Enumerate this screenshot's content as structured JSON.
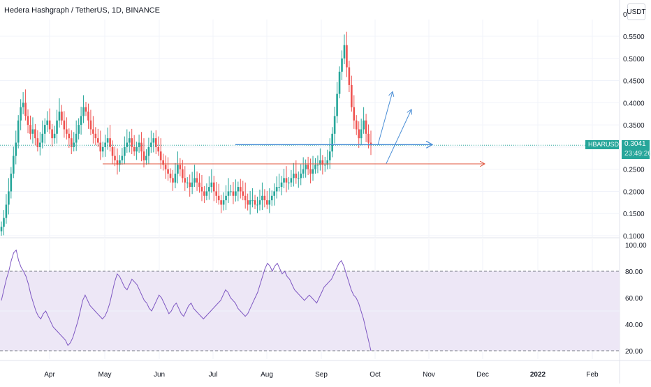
{
  "header": {
    "title": "Hedera Hashgraph / TetherUS, 1D, BINANCE",
    "currency": "USDT"
  },
  "price_badge": {
    "symbol": "HBARUSDT",
    "price": "0.3041",
    "countdown": "23:49:26",
    "color": "#26a69a"
  },
  "colors": {
    "up": "#26a69a",
    "down": "#ef5350",
    "rsi_line": "#7e57c2",
    "rsi_band": "#ede7f6",
    "support_line": "#4c8fd6",
    "resistance_line": "#e0543c"
  },
  "chart_data": [
    {
      "type": "candlestick",
      "title": "Hedera Hashgraph / TetherUS, 1D, BINANCE",
      "y_ticks": [
        "0.1000",
        "0.1500",
        "0.2000",
        "0.2500",
        "0.3000",
        "0.3500",
        "0.4000",
        "0.4500",
        "0.5000",
        "0.5500",
        "0"
      ],
      "x_ticks": [
        "Apr",
        "May",
        "Jun",
        "Jul",
        "Aug",
        "Sep",
        "Oct",
        "Nov",
        "Dec",
        "2022",
        "Feb"
      ],
      "last_price": 0.3041,
      "ylim": [
        0.1,
        0.6
      ],
      "series_close": [
        0.12,
        0.14,
        0.17,
        0.2,
        0.24,
        0.28,
        0.31,
        0.36,
        0.39,
        0.4,
        0.37,
        0.35,
        0.33,
        0.34,
        0.32,
        0.3,
        0.31,
        0.33,
        0.35,
        0.36,
        0.34,
        0.32,
        0.33,
        0.36,
        0.38,
        0.36,
        0.34,
        0.33,
        0.32,
        0.3,
        0.31,
        0.33,
        0.35,
        0.37,
        0.39,
        0.38,
        0.36,
        0.34,
        0.33,
        0.32,
        0.31,
        0.29,
        0.3,
        0.31,
        0.32,
        0.3,
        0.28,
        0.27,
        0.26,
        0.27,
        0.28,
        0.3,
        0.31,
        0.32,
        0.3,
        0.29,
        0.3,
        0.31,
        0.29,
        0.27,
        0.28,
        0.3,
        0.31,
        0.32,
        0.3,
        0.29,
        0.27,
        0.26,
        0.25,
        0.24,
        0.23,
        0.22,
        0.24,
        0.26,
        0.25,
        0.23,
        0.22,
        0.22,
        0.21,
        0.22,
        0.23,
        0.22,
        0.21,
        0.2,
        0.19,
        0.2,
        0.21,
        0.22,
        0.2,
        0.19,
        0.18,
        0.17,
        0.18,
        0.19,
        0.2,
        0.2,
        0.19,
        0.2,
        0.21,
        0.2,
        0.19,
        0.18,
        0.17,
        0.18,
        0.18,
        0.17,
        0.17,
        0.18,
        0.19,
        0.18,
        0.17,
        0.18,
        0.19,
        0.2,
        0.21,
        0.21,
        0.22,
        0.23,
        0.22,
        0.22,
        0.23,
        0.24,
        0.23,
        0.23,
        0.24,
        0.25,
        0.26,
        0.25,
        0.24,
        0.25,
        0.26,
        0.26,
        0.27,
        0.26,
        0.26,
        0.27,
        0.29,
        0.33,
        0.37,
        0.42,
        0.47,
        0.5,
        0.53,
        0.48,
        0.44,
        0.39,
        0.36,
        0.34,
        0.32,
        0.34,
        0.36,
        0.33,
        0.31,
        0.3041
      ],
      "series_ohlc_note": "OHLC estimated from candle shapes; close series listed above",
      "annotations": [
        "horizontal blue support line near 0.305",
        "horizontal red line near 0.262",
        "blue projection arrows upward"
      ]
    },
    {
      "type": "line",
      "title": "RSI",
      "y_ticks": [
        "20.00",
        "40.00",
        "60.00",
        "80.00",
        "100.00"
      ],
      "ylim": [
        15,
        100
      ],
      "band": [
        20,
        80
      ],
      "values": [
        58,
        66,
        74,
        80,
        88,
        94,
        96,
        88,
        83,
        80,
        76,
        70,
        62,
        56,
        50,
        46,
        44,
        48,
        50,
        46,
        42,
        38,
        36,
        34,
        32,
        30,
        28,
        24,
        26,
        30,
        36,
        42,
        50,
        58,
        62,
        58,
        54,
        52,
        50,
        48,
        46,
        44,
        46,
        50,
        56,
        64,
        72,
        78,
        76,
        72,
        68,
        66,
        70,
        74,
        72,
        70,
        66,
        62,
        58,
        56,
        52,
        50,
        54,
        58,
        62,
        60,
        56,
        52,
        48,
        50,
        54,
        56,
        52,
        48,
        46,
        50,
        54,
        56,
        52,
        50,
        48,
        46,
        44,
        46,
        48,
        50,
        52,
        54,
        56,
        58,
        62,
        66,
        64,
        60,
        58,
        56,
        52,
        50,
        48,
        46,
        48,
        52,
        56,
        60,
        64,
        70,
        76,
        82,
        86,
        84,
        80,
        84,
        86,
        82,
        78,
        80,
        76,
        74,
        70,
        66,
        64,
        62,
        60,
        58,
        60,
        62,
        60,
        58,
        56,
        60,
        64,
        68,
        70,
        72,
        74,
        78,
        82,
        86,
        88,
        84,
        78,
        72,
        66,
        62,
        60,
        56,
        50,
        44,
        36,
        28,
        20
      ]
    }
  ]
}
